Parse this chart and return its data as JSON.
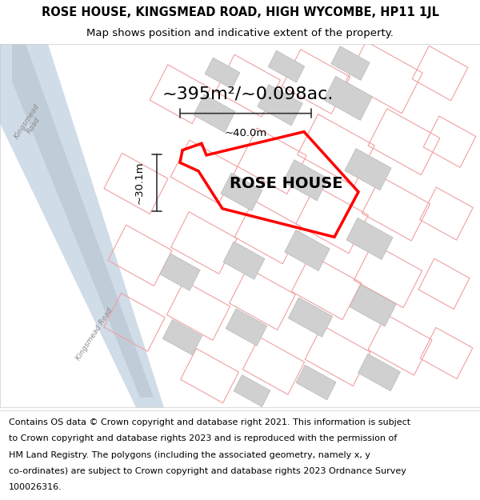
{
  "title_line1": "ROSE HOUSE, KINGSMEAD ROAD, HIGH WYCOMBE, HP11 1JL",
  "title_line2": "Map shows position and indicative extent of the property.",
  "area_text": "~395m²/~0.098ac.",
  "property_label": "ROSE HOUSE",
  "width_label": "~40.0m",
  "height_label": "~30.1m",
  "footer_lines": [
    "Contains OS data © Crown copyright and database right 2021. This information is subject",
    "to Crown copyright and database rights 2023 and is reproduced with the permission of",
    "HM Land Registry. The polygons (including the associated geometry, namely x, y",
    "co-ordinates) are subject to Crown copyright and database rights 2023 Ordnance Survey",
    "100026316."
  ],
  "map_bg": "#f5f5f5",
  "road_color": "#d0dce8",
  "road_center_color": "#c0ccd8",
  "building_fill": "#d0d0d0",
  "building_edge": "#b8b8b8",
  "plot_edge_color": "#ff0000",
  "parcel_line_color": "#f0a0a0",
  "dim_line_color": "#333333",
  "road_label_color": "#888888",
  "title_fontsize": 10.5,
  "subtitle_fontsize": 9.5,
  "area_fontsize": 16,
  "label_fontsize": 14,
  "footer_fontsize": 8,
  "dim_fontsize": 9.5
}
